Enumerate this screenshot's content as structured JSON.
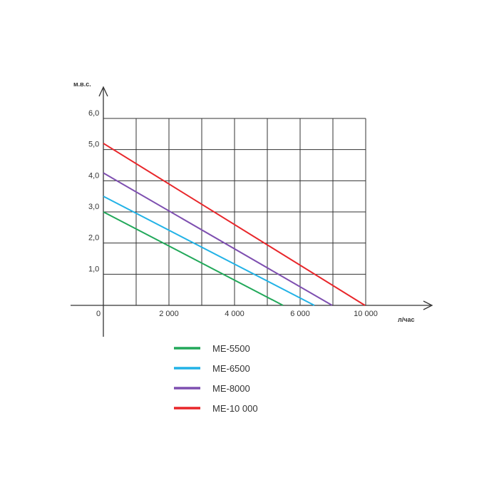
{
  "chart_data": {
    "type": "line",
    "title": "",
    "xlabel": "л/час",
    "ylabel": "м.в.с.",
    "xlim": [
      0,
      10000
    ],
    "ylim": [
      0,
      6
    ],
    "grid": true,
    "legend_position": "bottom",
    "x_ticks": [
      {
        "value": 0,
        "label": "0"
      },
      {
        "value": 2000,
        "label": "2 000"
      },
      {
        "value": 4000,
        "label": "4 000"
      },
      {
        "value": 6000,
        "label": "6 000"
      },
      {
        "value": 10000,
        "label": "10 000"
      }
    ],
    "y_ticks": [
      {
        "value": 1,
        "label": "1,0"
      },
      {
        "value": 2,
        "label": "2,0"
      },
      {
        "value": 3,
        "label": "3,0"
      },
      {
        "value": 4,
        "label": "4,0"
      },
      {
        "value": 5,
        "label": "5,0"
      },
      {
        "value": 6,
        "label": "6,0"
      }
    ],
    "series": [
      {
        "name": "ME-5500",
        "color": "#22a85a",
        "x": [
          0,
          5500
        ],
        "y": [
          3.0,
          0
        ]
      },
      {
        "name": "ME-6500",
        "color": "#22b2e6",
        "x": [
          0,
          6500
        ],
        "y": [
          3.5,
          0
        ]
      },
      {
        "name": "ME-8000",
        "color": "#7e4fb0",
        "x": [
          0,
          7000
        ],
        "y": [
          4.25,
          0
        ]
      },
      {
        "name": "ME-10 000",
        "color": "#e8262a",
        "x": [
          0,
          8000
        ],
        "y": [
          5.2,
          0
        ]
      }
    ]
  }
}
